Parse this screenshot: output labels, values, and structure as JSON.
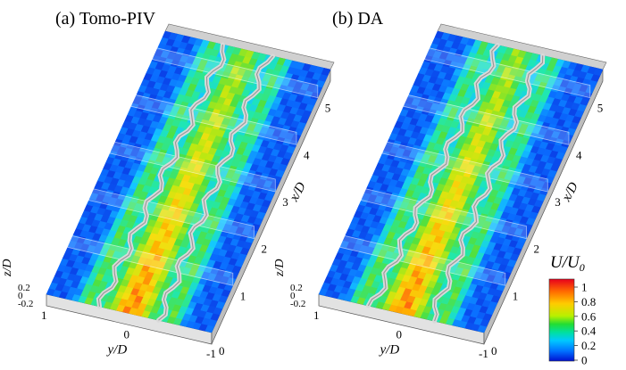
{
  "panels": [
    {
      "title": "(a) Tomo-PIV"
    },
    {
      "title": "(b) DA"
    }
  ],
  "axes": {
    "x_label": "x/D",
    "x_ticks": [
      "1",
      "2",
      "3",
      "4",
      "5"
    ],
    "y_label": "y/D",
    "y_ticks": [
      "1",
      "0",
      "-1"
    ],
    "z_label": "z/D",
    "z_ticks": [
      "0.2",
      "0",
      "-0.2"
    ],
    "end_tick": "0"
  },
  "colorbar": {
    "label": "U/U0",
    "label_main": "U/U",
    "label_sub": "0",
    "ticks": [
      "1",
      "0.8",
      "0.6",
      "0.4",
      "0.2",
      "0"
    ],
    "colors": [
      "#e8001c",
      "#ff6a00",
      "#ffcc00",
      "#b8f000",
      "#22dd33",
      "#00e0a0",
      "#00c8ff",
      "#0070ff",
      "#0010d0"
    ]
  },
  "scale_colors": {
    "0.0": "#0a1ed4",
    "0.15": "#0a6cff",
    "0.3": "#14c8ff",
    "0.42": "#20e8b0",
    "0.55": "#50e040",
    "0.68": "#c0e810",
    "0.78": "#f6de10",
    "0.86": "#ffb000",
    "0.93": "#ff6810",
    "1.0": "#e81a10"
  }
}
